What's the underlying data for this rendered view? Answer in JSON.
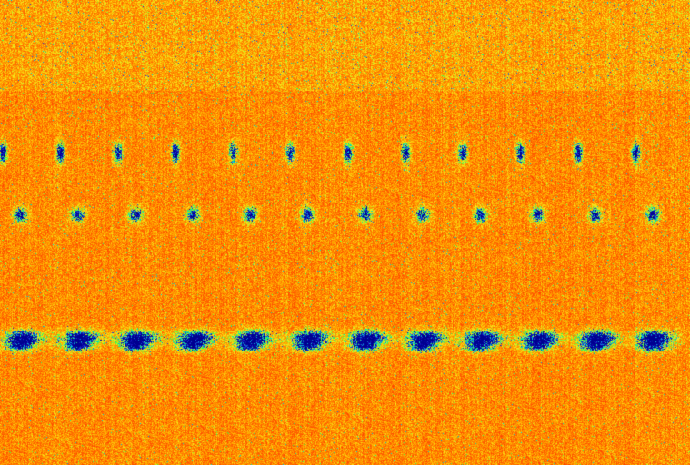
{
  "image": {
    "kind": "spectrogram-heatmap",
    "colormap": {
      "background": "#ff7a00",
      "hot": "#ff3a00",
      "warm": "#ffb000",
      "bright": "#f5f020",
      "green": "#40ff40",
      "cyan": "#00d0e0",
      "blue": "#2020d0",
      "deep": "#000090"
    },
    "repeating_units": 12
  }
}
